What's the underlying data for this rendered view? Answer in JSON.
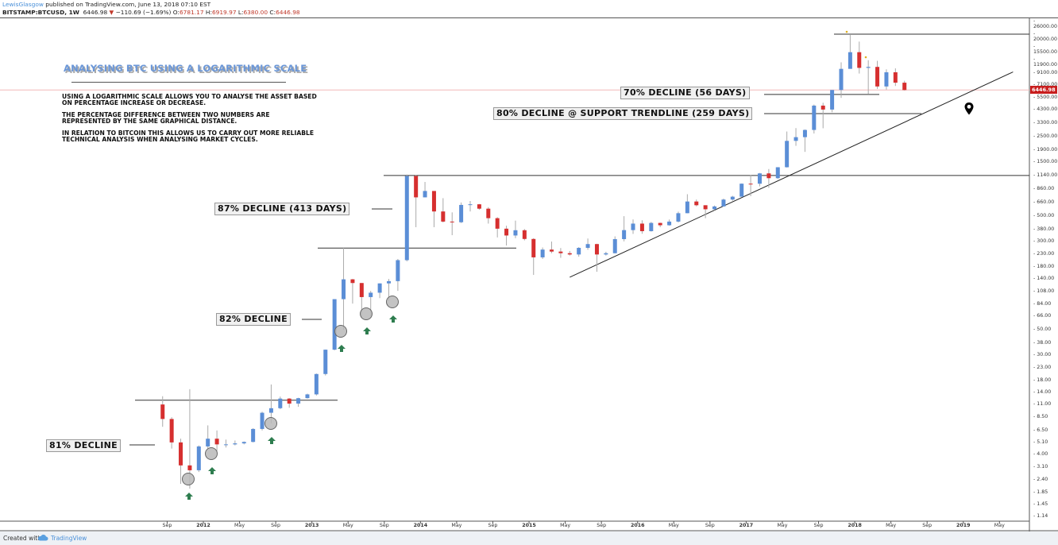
{
  "header": {
    "author": "LewisGlasgow",
    "published": "published on TradingView.com, June 13, 2018 07:10 EST",
    "symbol": "BITSTAMP:BTCUSD, 1W",
    "last": "6446.98",
    "change": "−110.69 (−1.69%)",
    "open_label": "O:",
    "open": "6781.17",
    "high_label": "H:",
    "high": "6919.97",
    "low_label": "L:",
    "low": "6380.00",
    "close_label": "C:",
    "close": "6446.98"
  },
  "annotations": {
    "title": "ANALYSING BTC USING A LOGARITHMIC SCALE",
    "paragraphs": [
      "USING A LOGARITHMIC SCALE ALLOWS YOU TO ANALYSE THE ASSET BASED ON PERCENTAGE INCREASE OR DECREASE.",
      "THE PERCENTAGE DIFFERENCE BETWEEN TWO NUMBERS ARE REPRESENTED BY THE SAME GRAPHICAL DISTANCE.",
      "IN RELATION TO BITCOIN THIS ALLOWS US TO CARRY OUT MORE RELIABLE TECHNICAL ANALYSIS WHEN ANALYSING MARKET CYCLES."
    ],
    "labels": {
      "d81": "81% DECLINE",
      "d82": "82% DECLINE",
      "d87": "87% DECLINE (413 DAYS)",
      "d70": "70% DECLINE (56 DAYS)",
      "d80": "80% DECLINE @ SUPPORT TRENDLINE (259 DAYS)"
    }
  },
  "footer": {
    "created_with": "Created with",
    "brand": "TradingView"
  },
  "colors": {
    "up": "#5b8ed6",
    "down": "#d62f2f",
    "price_line": "#f2b8b8",
    "price_tag": "#c81e1e",
    "arrow": "#2e7d4f"
  },
  "chart_data": {
    "type": "candlestick",
    "scale": "log",
    "ylim": [
      1.14,
      26000
    ],
    "grid": false,
    "current_price": 6446.98,
    "y_ticks": [
      "26000.00",
      "20000.00",
      "15500.00",
      "11900.00",
      "9100.00",
      "7100.00",
      "5500.00",
      "4300.00",
      "3300.00",
      "2500.00",
      "1900.00",
      "1500.00",
      "1140.00",
      "860.00",
      "660.00",
      "500.00",
      "380.00",
      "300.00",
      "230.00",
      "180.00",
      "140.00",
      "108.00",
      "84.00",
      "66.00",
      "50.00",
      "38.00",
      "30.00",
      "23.00",
      "18.00",
      "14.00",
      "11.00",
      "8.50",
      "6.50",
      "5.10",
      "4.00",
      "3.10",
      "2.40",
      "1.85",
      "1.45",
      "1.14"
    ],
    "x_ticks": [
      "Sep",
      "2012",
      "May",
      "Sep",
      "2013",
      "May",
      "Sep",
      "2014",
      "May",
      "Sep",
      "2015",
      "May",
      "Sep",
      "2016",
      "May",
      "Sep",
      "2017",
      "May",
      "Sep",
      "2018",
      "May",
      "Sep",
      "2019",
      "May"
    ],
    "x_tick_dates": [
      "2011-09",
      "2012-01",
      "2012-05",
      "2012-09",
      "2013-01",
      "2013-05",
      "2013-09",
      "2014-01",
      "2014-05",
      "2014-09",
      "2015-01",
      "2015-05",
      "2015-09",
      "2016-01",
      "2016-05",
      "2016-09",
      "2017-01",
      "2017-05",
      "2017-09",
      "2018-01",
      "2018-05",
      "2018-09",
      "2019-01",
      "2019-05"
    ],
    "candles_ohlc_monthly_approx": [
      [
        "2011-08",
        11,
        13,
        7,
        8.2
      ],
      [
        "2011-09",
        8.2,
        8.5,
        4.5,
        5.1
      ],
      [
        "2011-10",
        5.1,
        5.5,
        2.2,
        3.2
      ],
      [
        "2011-11",
        3.2,
        15,
        2.0,
        2.9
      ],
      [
        "2011-12",
        2.9,
        4.8,
        2.8,
        4.7
      ],
      [
        "2012-01",
        4.7,
        7.2,
        4.5,
        5.5
      ],
      [
        "2012-02",
        5.5,
        6.5,
        4.2,
        4.9
      ],
      [
        "2012-03",
        4.9,
        5.4,
        4.6,
        4.9
      ],
      [
        "2012-04",
        4.9,
        5.3,
        4.8,
        5.0
      ],
      [
        "2012-05",
        5.0,
        5.2,
        4.9,
        5.15
      ],
      [
        "2012-06",
        5.15,
        6.8,
        5.1,
        6.7
      ],
      [
        "2012-07",
        6.7,
        9.5,
        6.5,
        9.3
      ],
      [
        "2012-08",
        9.3,
        16.5,
        7.5,
        10.2
      ],
      [
        "2012-09",
        10.2,
        12.9,
        10,
        12.4
      ],
      [
        "2012-10",
        12.4,
        12.5,
        10.3,
        11.2
      ],
      [
        "2012-11",
        11.2,
        12.6,
        10.5,
        12.5
      ],
      [
        "2012-12",
        12.5,
        13.7,
        12.4,
        13.5
      ],
      [
        "2013-01",
        13.5,
        20.6,
        13.2,
        20.4
      ],
      [
        "2013-02",
        20.4,
        33.5,
        19.8,
        33.4
      ],
      [
        "2013-03",
        33.4,
        93,
        33,
        93
      ],
      [
        "2013-04",
        93,
        266,
        50,
        139
      ],
      [
        "2013-05",
        139,
        140,
        85,
        129
      ],
      [
        "2013-06",
        129,
        129,
        65,
        97
      ],
      [
        "2013-07",
        97,
        110,
        66,
        106
      ],
      [
        "2013-08",
        106,
        128,
        95,
        128
      ],
      [
        "2013-09",
        128,
        140,
        90,
        134
      ],
      [
        "2013-10",
        134,
        210,
        110,
        205
      ],
      [
        "2013-11",
        205,
        1163,
        200,
        1129
      ],
      [
        "2013-12",
        1129,
        1150,
        400,
        732
      ],
      [
        "2014-01",
        732,
        1000,
        735,
        833
      ],
      [
        "2014-02",
        833,
        833,
        400,
        550
      ],
      [
        "2014-03",
        550,
        720,
        440,
        448
      ],
      [
        "2014-04",
        448,
        540,
        340,
        442
      ],
      [
        "2014-05",
        442,
        660,
        435,
        628
      ],
      [
        "2014-06",
        628,
        680,
        550,
        636
      ],
      [
        "2014-07",
        636,
        640,
        570,
        582
      ],
      [
        "2014-08",
        582,
        600,
        430,
        480
      ],
      [
        "2014-09",
        480,
        490,
        325,
        388
      ],
      [
        "2014-10",
        388,
        412,
        276,
        338
      ],
      [
        "2014-11",
        338,
        457,
        320,
        376
      ],
      [
        "2014-12",
        376,
        385,
        306,
        315
      ],
      [
        "2015-01",
        315,
        320,
        152,
        217
      ],
      [
        "2015-02",
        217,
        265,
        210,
        254
      ],
      [
        "2015-03",
        254,
        299,
        236,
        244
      ],
      [
        "2015-04",
        244,
        262,
        215,
        236
      ],
      [
        "2015-05",
        236,
        247,
        225,
        230
      ],
      [
        "2015-06",
        230,
        267,
        220,
        263
      ],
      [
        "2015-07",
        263,
        318,
        253,
        284
      ],
      [
        "2015-08",
        284,
        286,
        162,
        230
      ],
      [
        "2015-09",
        230,
        243,
        225,
        236
      ],
      [
        "2015-10",
        236,
        332,
        235,
        314
      ],
      [
        "2015-11",
        314,
        500,
        300,
        377
      ],
      [
        "2015-12",
        377,
        468,
        349,
        430
      ],
      [
        "2016-01",
        430,
        460,
        350,
        369
      ],
      [
        "2016-02",
        369,
        445,
        366,
        436
      ],
      [
        "2016-03",
        436,
        438,
        400,
        416
      ],
      [
        "2016-04",
        416,
        467,
        412,
        448
      ],
      [
        "2016-05",
        448,
        548,
        440,
        531
      ],
      [
        "2016-06",
        531,
        780,
        530,
        673
      ],
      [
        "2016-07",
        673,
        700,
        610,
        624
      ],
      [
        "2016-08",
        624,
        624,
        480,
        575
      ],
      [
        "2016-09",
        575,
        620,
        565,
        609
      ],
      [
        "2016-10",
        609,
        714,
        607,
        700
      ],
      [
        "2016-11",
        700,
        755,
        684,
        742
      ],
      [
        "2016-12",
        742,
        970,
        742,
        966
      ],
      [
        "2017-01",
        966,
        1150,
        750,
        965
      ],
      [
        "2017-02",
        965,
        1200,
        915,
        1190
      ],
      [
        "2017-03",
        1190,
        1300,
        890,
        1080
      ],
      [
        "2017-04",
        1080,
        1350,
        1060,
        1348
      ],
      [
        "2017-05",
        1348,
        2780,
        1340,
        2300
      ],
      [
        "2017-06",
        2300,
        2980,
        2080,
        2480
      ],
      [
        "2017-07",
        2480,
        2900,
        1840,
        2870
      ],
      [
        "2017-08",
        2870,
        4800,
        2670,
        4700
      ],
      [
        "2017-09",
        4700,
        4980,
        2970,
        4340
      ],
      [
        "2017-10",
        4340,
        6450,
        4110,
        6450
      ],
      [
        "2017-11",
        6450,
        11300,
        5500,
        9900
      ],
      [
        "2017-12",
        9900,
        19660,
        10800,
        13880
      ],
      [
        "2018-01",
        13880,
        17200,
        9000,
        10100
      ],
      [
        "2018-02",
        10100,
        11800,
        5970,
        10300
      ],
      [
        "2018-03",
        10300,
        11650,
        6600,
        6930
      ],
      [
        "2018-04",
        6930,
        9800,
        6500,
        9240
      ],
      [
        "2018-05",
        9240,
        10000,
        7000,
        7480
      ],
      [
        "2018-06",
        7480,
        7780,
        6380,
        6446.98
      ]
    ],
    "horizontal_levels": [
      20000,
      5900,
      4000,
      1140,
      262,
      12
    ],
    "support_trendline": [
      [
        "2015-05",
        145
      ],
      [
        "2019-06",
        9300
      ]
    ]
  }
}
